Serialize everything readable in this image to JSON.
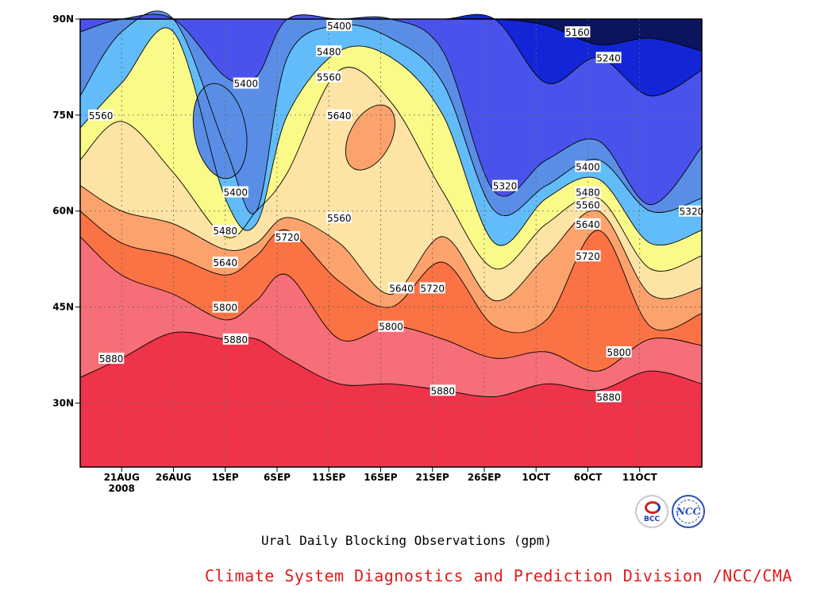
{
  "chart_data": {
    "type": "heatmap",
    "subtype": "filled-contour (time-latitude Hovmoller)",
    "title": "Ural Daily Blocking Observations (gpm)",
    "credit": "Climate System Diagnostics and Prediction Division /NCC/CMA",
    "xlabel": "",
    "ylabel": "",
    "x_ticks": [
      "21AUG",
      "26AUG",
      "1SEP",
      "6SEP",
      "11SEP",
      "16SEP",
      "21SEP",
      "26SEP",
      "1OCT",
      "6OCT",
      "11OCT"
    ],
    "x_year_label": "2008",
    "y_ticks": [
      "30N",
      "45N",
      "60N",
      "75N",
      "90N"
    ],
    "ylim": [
      20,
      90
    ],
    "x_start_date": "2008-08-17",
    "x_end_date": "2008-10-16",
    "grid": "dotted",
    "levels": [
      5160,
      5240,
      5320,
      5400,
      5480,
      5560,
      5640,
      5720,
      5800,
      5880
    ],
    "colors": [
      "#0c1460",
      "#1226d8",
      "#4a52ec",
      "#5a8ee6",
      "#62bcfa",
      "#fafa88",
      "#fde3a4",
      "#fca26c",
      "#fb7244",
      "#f66e78",
      "#ef3349"
    ],
    "sample_dates": [
      "2008-08-17",
      "2008-08-21",
      "2008-08-26",
      "2008-08-31",
      "2008-09-03",
      "2008-09-06",
      "2008-09-11",
      "2008-09-16",
      "2008-09-21",
      "2008-09-26",
      "2008-10-01",
      "2008-10-06",
      "2008-10-11",
      "2008-10-16"
    ],
    "contours": [
      {
        "level": 5880,
        "lat": [
          34,
          37,
          41,
          40,
          40,
          37,
          33,
          33,
          32,
          31,
          33,
          32,
          35,
          33
        ]
      },
      {
        "level": 5800,
        "lat": [
          56,
          50,
          47,
          43,
          46,
          50,
          40,
          42,
          40,
          37,
          38,
          35,
          40,
          39
        ]
      },
      {
        "level": 5720,
        "lat": [
          60,
          55,
          53,
          50,
          53,
          57,
          49,
          45,
          52,
          42,
          43,
          57,
          42,
          44
        ]
      },
      {
        "level": 5640,
        "lat": [
          64,
          60,
          58,
          54,
          55,
          59,
          55,
          47,
          56,
          46,
          53,
          60,
          47,
          48
        ]
      },
      {
        "level": 5560,
        "lat": [
          68,
          74,
          66,
          56,
          60,
          66,
          82,
          77,
          63,
          51,
          58,
          62,
          51,
          53
        ]
      },
      {
        "level": 5480,
        "lat": [
          73,
          80,
          88,
          62,
          58,
          75,
          85,
          84,
          75,
          55,
          62,
          65,
          55,
          57
        ]
      },
      {
        "level": 5400,
        "lat": [
          78,
          88,
          90,
          70,
          60,
          84,
          89,
          87,
          80,
          60,
          64,
          68,
          60,
          62
        ]
      },
      {
        "level": 5320,
        "lat": [
          88,
          90,
          90,
          81,
          81,
          90,
          90,
          90,
          85,
          63,
          68,
          71,
          61,
          70
        ]
      },
      {
        "level": 5240,
        "lat": [
          90,
          90,
          90,
          90,
          90,
          90,
          90,
          90,
          90,
          90,
          80,
          84,
          78,
          82
        ]
      },
      {
        "level": 5160,
        "lat": [
          90,
          90,
          90,
          90,
          90,
          90,
          90,
          90,
          90,
          90,
          89,
          86,
          87,
          85
        ]
      }
    ],
    "isolated_regions": [
      {
        "level": 5640,
        "lat_range": [
          66,
          77
        ],
        "dates": [
          "2008-09-12",
          "2008-09-16"
        ]
      },
      {
        "level": 5400,
        "lat_range": [
          65,
          80
        ],
        "dates": [
          "2008-08-28",
          "2008-09-02"
        ]
      }
    ],
    "contour_labels": [
      {
        "text": "5400",
        "date": "2008-09-11",
        "lat": 89
      },
      {
        "text": "5480",
        "date": "2008-09-10",
        "lat": 85
      },
      {
        "text": "5560",
        "date": "2008-09-10",
        "lat": 81
      },
      {
        "text": "5640",
        "date": "2008-09-11",
        "lat": 75
      },
      {
        "text": "5400",
        "date": "2008-09-02",
        "lat": 80
      },
      {
        "text": "5560",
        "date": "2008-08-19",
        "lat": 75
      },
      {
        "text": "5160",
        "date": "2008-10-04",
        "lat": 88
      },
      {
        "text": "5240",
        "date": "2008-10-07",
        "lat": 84
      },
      {
        "text": "5400",
        "date": "2008-09-01",
        "lat": 63
      },
      {
        "text": "5320",
        "date": "2008-09-27",
        "lat": 64
      },
      {
        "text": "5400",
        "date": "2008-10-05",
        "lat": 67
      },
      {
        "text": "5480",
        "date": "2008-10-05",
        "lat": 63
      },
      {
        "text": "5560",
        "date": "2008-10-05",
        "lat": 61
      },
      {
        "text": "5640",
        "date": "2008-10-05",
        "lat": 58
      },
      {
        "text": "5320",
        "date": "2008-10-15",
        "lat": 60
      },
      {
        "text": "5480",
        "date": "2008-08-31",
        "lat": 57
      },
      {
        "text": "5720",
        "date": "2008-09-06",
        "lat": 56
      },
      {
        "text": "5560",
        "date": "2008-09-11",
        "lat": 59
      },
      {
        "text": "5640",
        "date": "2008-08-31",
        "lat": 52
      },
      {
        "text": "5720",
        "date": "2008-10-05",
        "lat": 53
      },
      {
        "text": "5640",
        "date": "2008-09-17",
        "lat": 48
      },
      {
        "text": "5720",
        "date": "2008-09-20",
        "lat": 48
      },
      {
        "text": "5800",
        "date": "2008-08-31",
        "lat": 45
      },
      {
        "text": "5800",
        "date": "2008-09-16",
        "lat": 42
      },
      {
        "text": "5880",
        "date": "2008-09-01",
        "lat": 40
      },
      {
        "text": "5880",
        "date": "2008-08-20",
        "lat": 37
      },
      {
        "text": "5800",
        "date": "2008-10-08",
        "lat": 38
      },
      {
        "text": "5880",
        "date": "2008-09-21",
        "lat": 32
      },
      {
        "text": "5880",
        "date": "2008-10-07",
        "lat": 31
      }
    ]
  },
  "logos": {
    "bcc": {
      "name": "bcc-logo",
      "text": "BCC"
    },
    "ncc": {
      "name": "ncc-logo",
      "text": "NCC"
    }
  }
}
